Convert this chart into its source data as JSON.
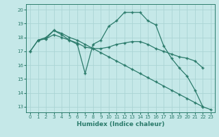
{
  "title": "",
  "xlabel": "Humidex (Indice chaleur)",
  "background_color": "#c5e8e8",
  "grid_color": "#aad4d4",
  "line_color": "#2a7a6a",
  "xlim": [
    -0.5,
    23.5
  ],
  "ylim": [
    12.6,
    20.4
  ],
  "yticks": [
    13,
    14,
    15,
    16,
    17,
    18,
    19,
    20
  ],
  "xticks": [
    0,
    1,
    2,
    3,
    4,
    5,
    6,
    7,
    8,
    9,
    10,
    11,
    12,
    13,
    14,
    15,
    16,
    17,
    18,
    19,
    20,
    21,
    22,
    23
  ],
  "lines": [
    {
      "x": [
        0,
        1,
        2,
        3,
        4,
        5,
        6,
        7,
        8,
        9,
        10,
        11,
        12,
        13,
        14,
        15,
        16,
        17,
        18,
        19,
        20,
        21,
        22
      ],
      "y": [
        17.0,
        17.8,
        18.0,
        18.5,
        18.2,
        17.8,
        17.5,
        15.4,
        17.5,
        17.8,
        18.8,
        19.2,
        19.8,
        19.8,
        19.8,
        19.2,
        18.9,
        17.4,
        16.5,
        15.8,
        15.2,
        14.2,
        13.0
      ]
    },
    {
      "x": [
        0,
        1,
        2,
        3,
        4,
        5,
        6,
        7,
        8,
        9,
        10,
        11,
        12,
        13,
        14,
        15,
        16,
        17,
        18,
        19,
        20,
        21,
        22
      ],
      "y": [
        17.0,
        17.8,
        17.9,
        18.2,
        18.0,
        17.8,
        17.6,
        17.3,
        17.2,
        17.2,
        17.3,
        17.5,
        17.6,
        17.7,
        17.7,
        17.5,
        17.2,
        17.0,
        16.8,
        16.6,
        16.5,
        16.3,
        15.8
      ]
    },
    {
      "x": [
        1,
        2,
        3,
        4,
        5,
        6,
        7,
        8,
        9,
        10,
        11,
        12,
        13,
        14,
        15,
        16,
        17,
        18,
        19,
        20,
        21,
        22,
        23
      ],
      "y": [
        17.8,
        17.9,
        18.5,
        18.3,
        18.0,
        17.8,
        17.5,
        17.2,
        16.9,
        16.6,
        16.3,
        16.0,
        15.7,
        15.4,
        15.1,
        14.8,
        14.5,
        14.2,
        13.9,
        13.6,
        13.3,
        13.0,
        12.8
      ]
    }
  ]
}
